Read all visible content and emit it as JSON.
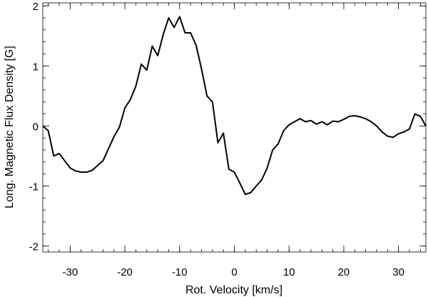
{
  "chart_data": {
    "type": "line",
    "xlabel": "Rot. Velocity [km/s]",
    "ylabel": "Long. Magnetic Flux Density [G]",
    "xlim": [
      -35,
      35
    ],
    "ylim": [
      -2.1,
      2.05
    ],
    "grid": false,
    "x_major_ticks": [
      -30,
      -20,
      -10,
      0,
      10,
      20,
      30
    ],
    "x_tick_labels": [
      "-30",
      "-20",
      "-10",
      "0",
      "10",
      "20",
      "30"
    ],
    "x_minor_step": 2,
    "y_major_ticks": [
      -2,
      -1,
      0,
      1,
      2
    ],
    "y_tick_labels": [
      "-2",
      "-1",
      "0",
      "1",
      "2"
    ],
    "y_minor_step": 0.2,
    "series": [
      {
        "x": [
          -35,
          -34,
          -33,
          -32,
          -31,
          -30,
          -29,
          -28,
          -27,
          -26,
          -25,
          -24,
          -23,
          -22,
          -21,
          -20,
          -19,
          -18,
          -17,
          -16,
          -15,
          -14,
          -13,
          -12,
          -11,
          -10,
          -9,
          -8,
          -7,
          -6,
          -5,
          -4,
          -3,
          -2,
          -1,
          0,
          1,
          2,
          3,
          4,
          5,
          6,
          7,
          8,
          9,
          10,
          11,
          12,
          13,
          14,
          15,
          16,
          17,
          18,
          19,
          20,
          21,
          22,
          23,
          24,
          25,
          26,
          27,
          28,
          29,
          30,
          31,
          32,
          33,
          34,
          35
        ],
        "y": [
          0.0,
          -0.08,
          -0.5,
          -0.46,
          -0.58,
          -0.7,
          -0.75,
          -0.77,
          -0.77,
          -0.74,
          -0.66,
          -0.58,
          -0.38,
          -0.18,
          -0.02,
          0.3,
          0.44,
          0.66,
          1.03,
          0.93,
          1.33,
          1.17,
          1.52,
          1.8,
          1.64,
          1.82,
          1.55,
          1.55,
          1.35,
          0.95,
          0.5,
          0.4,
          -0.28,
          -0.12,
          -0.72,
          -0.77,
          -0.95,
          -1.14,
          -1.11,
          -1.0,
          -0.9,
          -0.7,
          -0.4,
          -0.3,
          -0.08,
          0.02,
          0.07,
          0.12,
          0.07,
          0.09,
          0.03,
          0.07,
          0.02,
          0.08,
          0.07,
          0.11,
          0.16,
          0.17,
          0.15,
          0.12,
          0.07,
          0.0,
          -0.1,
          -0.17,
          -0.19,
          -0.13,
          -0.1,
          -0.05,
          0.2,
          0.16,
          0.0
        ]
      }
    ]
  }
}
